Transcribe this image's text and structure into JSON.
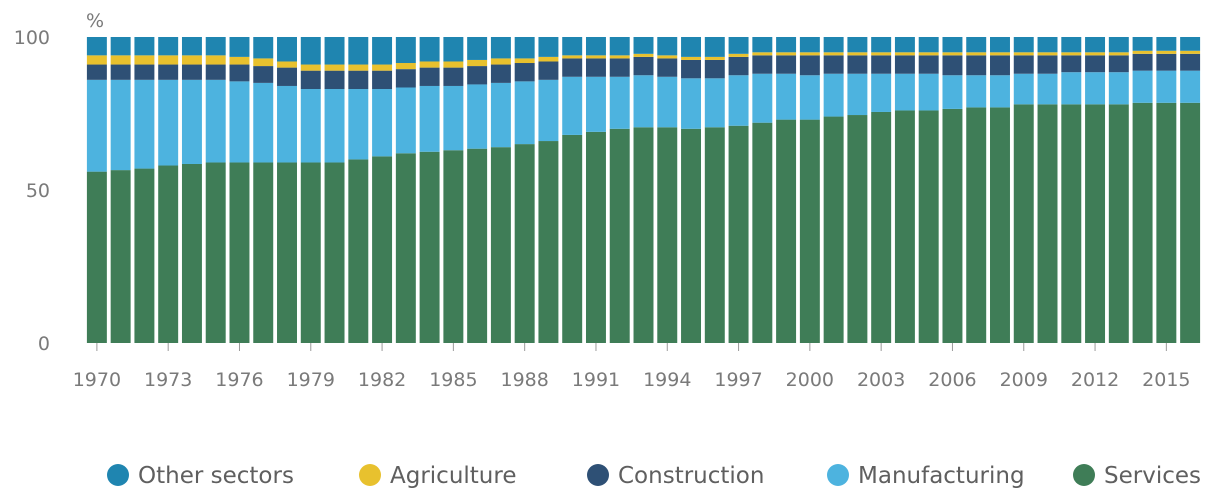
{
  "chart_data": {
    "type": "bar",
    "stacked": true,
    "percent_stacked": true,
    "unit_label": "%",
    "ylim": [
      0,
      100
    ],
    "yticks": [
      0,
      50,
      100
    ],
    "x": [
      1970,
      1971,
      1972,
      1973,
      1974,
      1975,
      1976,
      1977,
      1978,
      1979,
      1980,
      1981,
      1982,
      1983,
      1984,
      1985,
      1986,
      1987,
      1988,
      1989,
      1990,
      1991,
      1992,
      1993,
      1994,
      1995,
      1996,
      1997,
      1998,
      1999,
      2000,
      2001,
      2002,
      2003,
      2004,
      2005,
      2006,
      2007,
      2008,
      2009,
      2010,
      2011,
      2012,
      2013,
      2014,
      2015,
      2016
    ],
    "xtick_labels": [
      "1970",
      "1973",
      "1976",
      "1979",
      "1982",
      "1985",
      "1988",
      "1991",
      "1994",
      "1997",
      "2000",
      "2003",
      "2006",
      "2009",
      "2012",
      "2015"
    ],
    "grid": false,
    "legend_position": "bottom",
    "series": [
      {
        "name": "Services",
        "color": "#3f7d57",
        "values": [
          56,
          56.5,
          57,
          58,
          58.5,
          59,
          59,
          59,
          59,
          59,
          59,
          60,
          61,
          62,
          62.5,
          63,
          63.5,
          64,
          65,
          66,
          68,
          69,
          70,
          70.5,
          70.5,
          70,
          70.5,
          71,
          72,
          73,
          73,
          74,
          74.5,
          75.5,
          76,
          76,
          76.5,
          77,
          77,
          78,
          78,
          78,
          78,
          78,
          78.5,
          78.5,
          78.5
        ]
      },
      {
        "name": "Manufacturing",
        "color": "#4db3df",
        "values": [
          30,
          29.5,
          29,
          28,
          27.5,
          27,
          26.5,
          26,
          25,
          24,
          24,
          23,
          22,
          21.5,
          21.5,
          21,
          21,
          21,
          20.5,
          20,
          19,
          18,
          17,
          17,
          16.5,
          16.5,
          16,
          16.5,
          16,
          15,
          14.5,
          14,
          13.5,
          12.5,
          12,
          12,
          11,
          10.5,
          10.5,
          10,
          10,
          10.5,
          10.5,
          10.5,
          10.5,
          10.5,
          10.5
        ]
      },
      {
        "name": "Construction",
        "color": "#2e5075",
        "values": [
          5,
          5,
          5,
          5,
          5,
          5,
          5.5,
          5.5,
          6,
          6,
          6,
          6,
          6,
          6,
          6,
          6,
          6,
          6,
          6,
          6,
          6,
          6,
          6,
          6,
          6,
          6,
          6,
          6,
          6,
          6,
          6.5,
          6,
          6,
          6,
          6,
          6,
          6.5,
          6.5,
          6.5,
          6,
          6,
          5.5,
          5.5,
          5.5,
          5.5,
          5.5,
          5.5
        ]
      },
      {
        "name": "Agriculture",
        "color": "#e8c12e",
        "values": [
          3,
          3,
          3,
          3,
          3,
          3,
          2.5,
          2.5,
          2,
          2,
          2,
          2,
          2,
          2,
          2,
          2,
          2,
          2,
          1.5,
          1.5,
          1,
          1,
          1,
          1,
          1,
          1,
          1,
          1,
          1,
          1,
          1,
          1,
          1,
          1,
          1,
          1,
          1,
          1,
          1,
          1,
          1,
          1,
          1,
          1,
          1,
          1,
          1
        ]
      },
      {
        "name": "Other sectors",
        "color": "#1f85b0",
        "values": [
          6,
          6,
          6,
          6,
          6,
          6,
          6.5,
          7,
          8,
          9,
          9,
          9,
          9,
          8.5,
          8,
          8,
          7.5,
          7,
          7,
          6.5,
          6,
          6,
          6,
          5.5,
          6,
          6.5,
          6.5,
          5.5,
          5,
          5,
          5,
          5,
          5,
          5,
          5,
          5,
          5,
          5,
          5,
          5,
          5,
          5,
          5,
          5,
          4.5,
          4.5,
          4.5
        ]
      }
    ],
    "legend_order": [
      "Other sectors",
      "Agriculture",
      "Construction",
      "Manufacturing",
      "Services"
    ]
  }
}
